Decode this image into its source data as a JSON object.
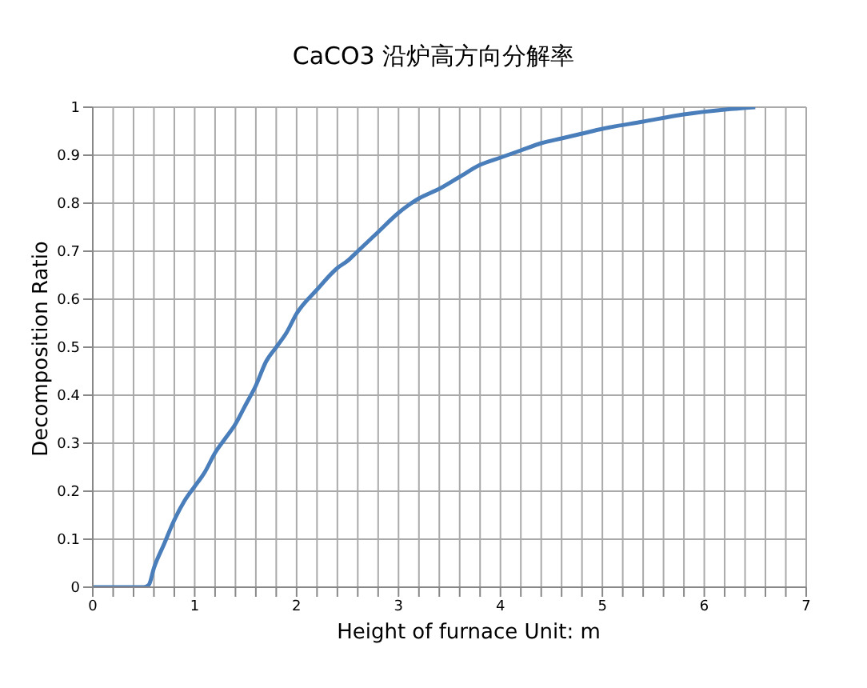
{
  "chart_data": {
    "type": "line",
    "title": "CaCO3 沿炉高方向分解率",
    "xlabel": "Height of furnace Unit: m",
    "ylabel": "Decomposition Ratio",
    "x": [
      0,
      0.5,
      0.55,
      0.6,
      0.7,
      0.8,
      0.9,
      1.0,
      1.1,
      1.2,
      1.3,
      1.4,
      1.5,
      1.6,
      1.7,
      1.8,
      1.9,
      2.0,
      2.2,
      2.4,
      2.5,
      2.6,
      2.8,
      3.0,
      3.2,
      3.4,
      3.6,
      3.8,
      4.0,
      4.2,
      4.4,
      4.6,
      4.8,
      5.0,
      5.4,
      5.8,
      6.2,
      6.5
    ],
    "series": [
      {
        "color": "#4a7ebb",
        "values": [
          0,
          0,
          0.005,
          0.04,
          0.09,
          0.14,
          0.18,
          0.21,
          0.24,
          0.28,
          0.31,
          0.34,
          0.38,
          0.42,
          0.47,
          0.5,
          0.53,
          0.57,
          0.62,
          0.665,
          0.68,
          0.7,
          0.74,
          0.78,
          0.81,
          0.83,
          0.855,
          0.88,
          0.895,
          0.91,
          0.925,
          0.935,
          0.945,
          0.955,
          0.97,
          0.985,
          0.995,
          1.0
        ]
      }
    ],
    "xlim": [
      0,
      7
    ],
    "xticks": [
      0,
      {
        "value": 0.2,
        "label": null
      },
      {
        "value": 0.4,
        "label": null
      },
      {
        "value": 0.6,
        "label": null
      },
      {
        "value": 0.8,
        "label": null
      },
      1,
      {
        "value": 1.2,
        "label": null
      },
      {
        "value": 1.4,
        "label": null
      },
      {
        "value": 1.6,
        "label": null
      },
      {
        "value": 1.8,
        "label": null
      },
      2,
      {
        "value": 2.2,
        "label": null
      },
      {
        "value": 2.4,
        "label": null
      },
      {
        "value": 2.6,
        "label": null
      },
      {
        "value": 2.8,
        "label": null
      },
      3,
      {
        "value": 3.2,
        "label": null
      },
      {
        "value": 3.4,
        "label": null
      },
      {
        "value": 3.6,
        "label": null
      },
      {
        "value": 3.8,
        "label": null
      },
      4,
      {
        "value": 4.2,
        "label": null
      },
      {
        "value": 4.4,
        "label": null
      },
      {
        "value": 4.6,
        "label": null
      },
      {
        "value": 4.8,
        "label": null
      },
      5,
      {
        "value": 5.2,
        "label": null
      },
      {
        "value": 5.4,
        "label": null
      },
      {
        "value": 5.6,
        "label": null
      },
      {
        "value": 5.8,
        "label": null
      },
      6,
      {
        "value": 6.2,
        "label": null
      },
      {
        "value": 6.4,
        "label": null
      },
      {
        "value": 6.6,
        "label": null
      },
      {
        "value": 6.8,
        "label": null
      },
      7
    ],
    "ylim": [
      0,
      1
    ],
    "yticks": [
      0,
      0.1,
      0.2,
      0.3,
      0.4,
      0.5,
      0.6,
      0.7,
      0.8,
      0.9,
      1
    ],
    "grid": true,
    "marker": "none",
    "line_style": "solid",
    "legend": false
  }
}
